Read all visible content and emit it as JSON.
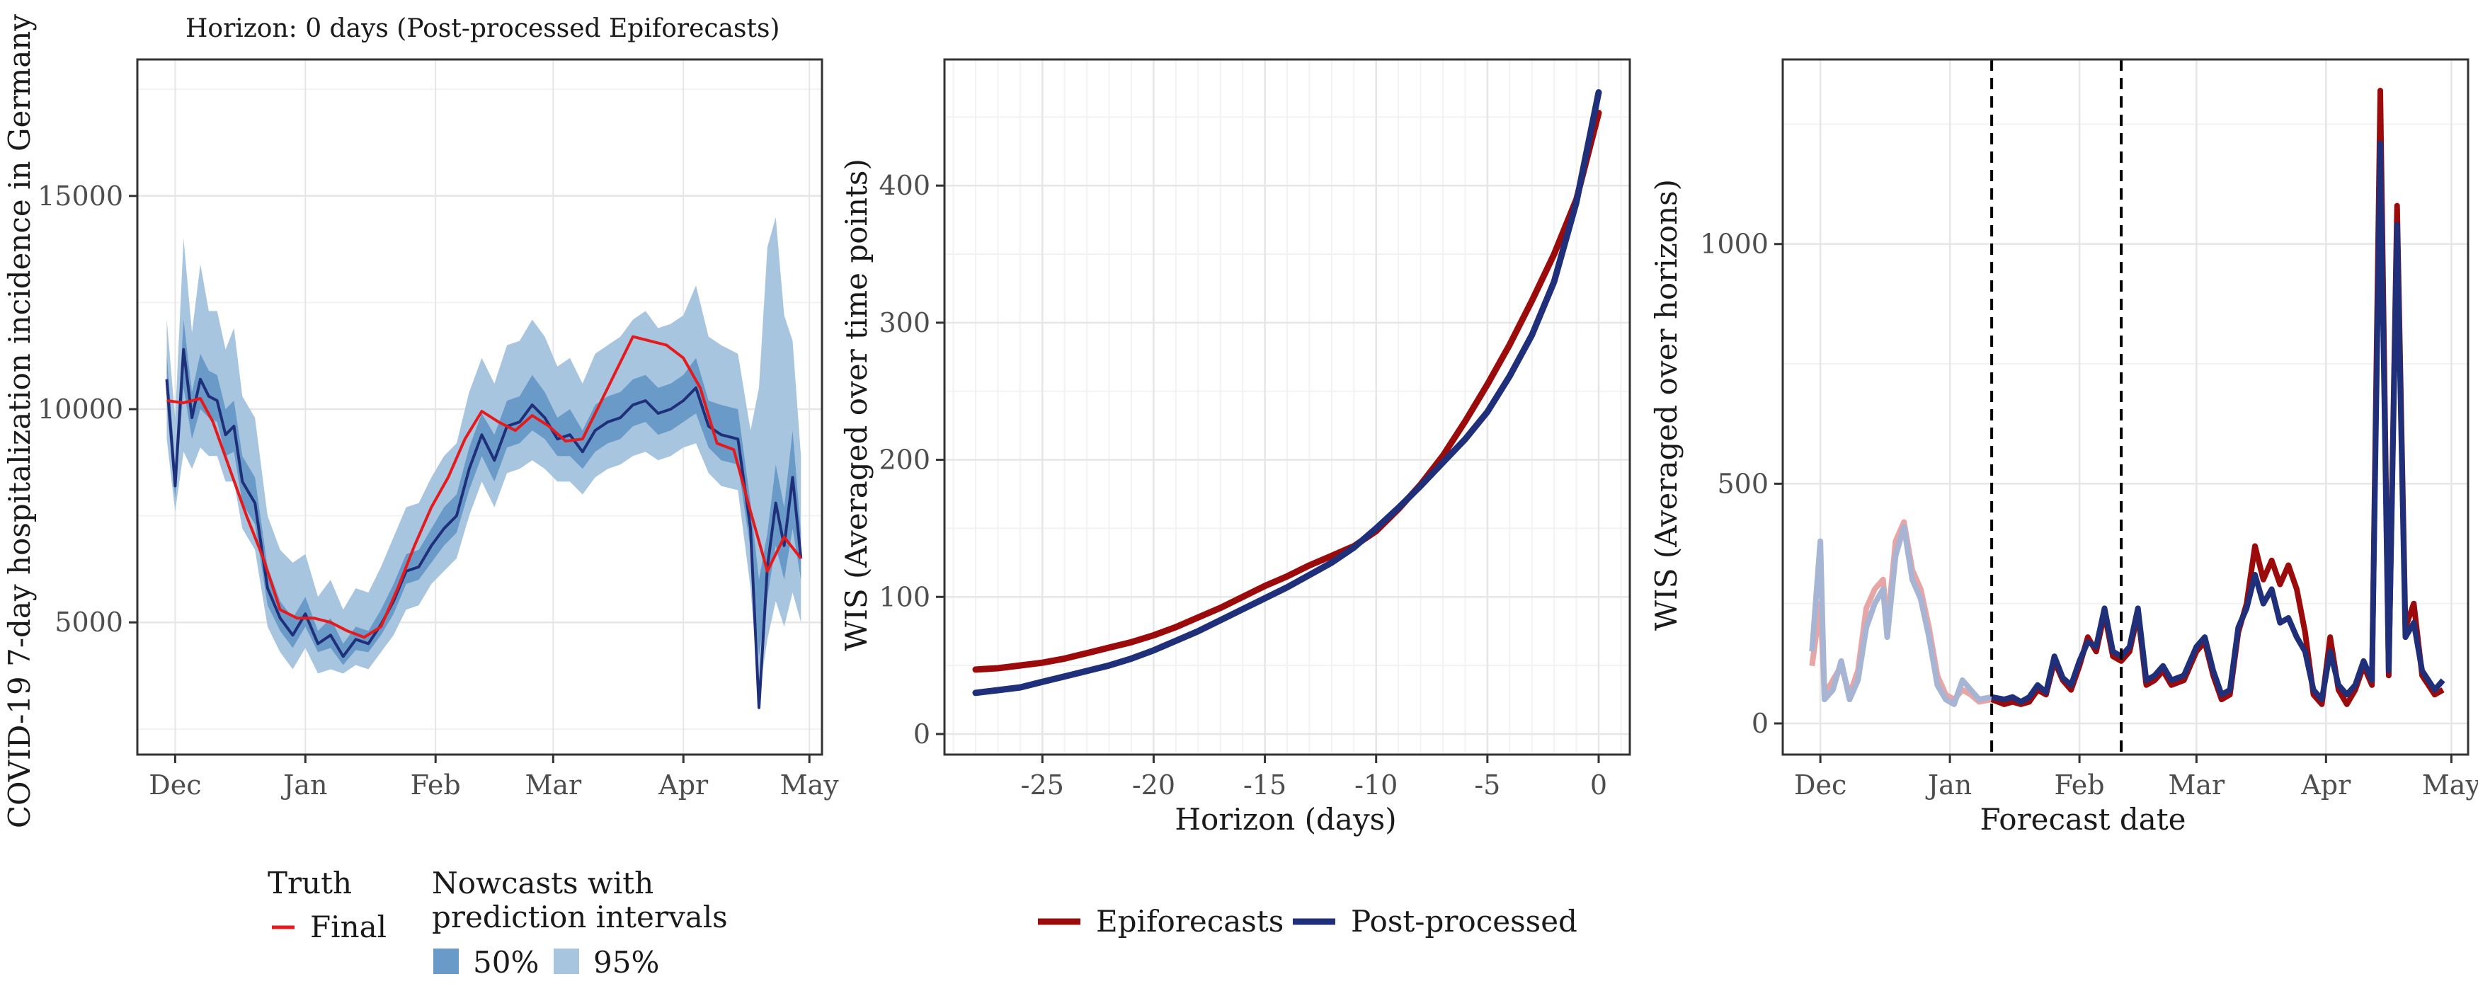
{
  "colors": {
    "truth": "#e41a1c",
    "nowcast_median": "#1f2f7a",
    "band50": "#6a9bc8",
    "band95": "#a8c5e0",
    "epiforecasts": "#9b0b0b",
    "postprocessed": "#1f2f7a",
    "faded_epiforecasts": "#e8a5a5",
    "faded_postprocessed": "#a7b5d4",
    "grid_major": "#e6e6e6",
    "grid_minor": "#f2f2f2",
    "vline": "#000000"
  },
  "legend_left": {
    "truth_title": "Truth",
    "truth_item": "Final",
    "nowcast_title_line1": "Nowcasts with",
    "nowcast_title_line2": "prediction intervals",
    "band50_label": "50%",
    "band95_label": "95%"
  },
  "legend_middle": {
    "epiforecasts_label": "Epiforecasts",
    "postprocessed_label": "Post-processed"
  },
  "chart_data": [
    {
      "type": "line",
      "title": "Horizon: 0 days (Post-processed Epiforecasts)",
      "xlabel": "",
      "ylabel": "COVID-19 7-day hospitalization incidence in Germany",
      "x_ticks": [
        "Dec",
        "Jan",
        "Feb",
        "Mar",
        "Apr",
        "May"
      ],
      "x_tick_dates": [
        "2021-12-01",
        "2022-01-01",
        "2022-02-01",
        "2022-03-01",
        "2022-04-01",
        "2022-05-01"
      ],
      "xlim": [
        "2021-11-22",
        "2022-05-04"
      ],
      "ylim": [
        1900,
        18200
      ],
      "y_ticks": [
        5000,
        10000,
        15000
      ],
      "grid": true,
      "truth": {
        "name": "Final",
        "x": [
          "2021-11-29",
          "2021-12-03",
          "2021-12-07",
          "2021-12-10",
          "2021-12-14",
          "2021-12-18",
          "2021-12-22",
          "2021-12-26",
          "2021-12-30",
          "2022-01-03",
          "2022-01-07",
          "2022-01-11",
          "2022-01-15",
          "2022-01-19",
          "2022-01-23",
          "2022-01-27",
          "2022-01-31",
          "2022-02-04",
          "2022-02-08",
          "2022-02-12",
          "2022-02-16",
          "2022-02-20",
          "2022-02-24",
          "2022-02-28",
          "2022-03-04",
          "2022-03-08",
          "2022-03-12",
          "2022-03-16",
          "2022-03-20",
          "2022-03-24",
          "2022-03-28",
          "2022-04-01",
          "2022-04-05",
          "2022-04-09",
          "2022-04-13",
          "2022-04-17",
          "2022-04-21",
          "2022-04-25",
          "2022-04-29"
        ],
        "y": [
          10200,
          10150,
          10250,
          9700,
          8600,
          7500,
          6500,
          5300,
          5100,
          5100,
          5000,
          4800,
          4650,
          4900,
          5800,
          6800,
          7700,
          8400,
          9300,
          9950,
          9700,
          9500,
          9850,
          9600,
          9250,
          9300,
          10100,
          10900,
          11700,
          11600,
          11500,
          11200,
          10500,
          9200,
          9050,
          7600,
          6200,
          7000,
          6500
        ]
      },
      "nowcast": {
        "name": "Nowcasts with prediction intervals",
        "x": [
          "2021-11-29",
          "2021-12-01",
          "2021-12-03",
          "2021-12-05",
          "2021-12-07",
          "2021-12-09",
          "2021-12-11",
          "2021-12-13",
          "2021-12-15",
          "2021-12-17",
          "2021-12-20",
          "2021-12-23",
          "2021-12-26",
          "2021-12-29",
          "2022-01-01",
          "2022-01-04",
          "2022-01-07",
          "2022-01-10",
          "2022-01-13",
          "2022-01-16",
          "2022-01-19",
          "2022-01-22",
          "2022-01-25",
          "2022-01-28",
          "2022-01-31",
          "2022-02-03",
          "2022-02-06",
          "2022-02-09",
          "2022-02-12",
          "2022-02-15",
          "2022-02-18",
          "2022-02-21",
          "2022-02-24",
          "2022-02-27",
          "2022-03-02",
          "2022-03-05",
          "2022-03-08",
          "2022-03-11",
          "2022-03-14",
          "2022-03-17",
          "2022-03-20",
          "2022-03-23",
          "2022-03-26",
          "2022-03-29",
          "2022-04-01",
          "2022-04-04",
          "2022-04-07",
          "2022-04-10",
          "2022-04-14",
          "2022-04-17",
          "2022-04-19",
          "2022-04-21",
          "2022-04-23",
          "2022-04-25",
          "2022-04-27",
          "2022-04-29"
        ],
        "median": [
          10700,
          8200,
          11400,
          9800,
          10700,
          10300,
          10200,
          9400,
          9600,
          8300,
          7800,
          5800,
          5100,
          4700,
          5200,
          4500,
          4700,
          4200,
          4600,
          4500,
          4950,
          5500,
          6200,
          6300,
          6800,
          7200,
          7500,
          8600,
          9400,
          8800,
          9600,
          9700,
          10100,
          9800,
          9300,
          9400,
          9000,
          9500,
          9700,
          9800,
          10100,
          10200,
          9900,
          10000,
          10200,
          10500,
          9600,
          9400,
          9300,
          7200,
          3000,
          6300,
          7800,
          6800,
          8400,
          6500
        ],
        "lower50": [
          10100,
          7900,
          10500,
          9300,
          10000,
          9800,
          9700,
          8900,
          9000,
          7800,
          7300,
          5400,
          4800,
          4400,
          4900,
          4300,
          4400,
          4000,
          4350,
          4300,
          4700,
          5200,
          5900,
          6000,
          6400,
          6800,
          7100,
          8100,
          8900,
          8300,
          9100,
          9200,
          9500,
          9300,
          8900,
          8900,
          8600,
          9000,
          9200,
          9300,
          9600,
          9700,
          9400,
          9500,
          9700,
          9900,
          9100,
          8800,
          8700,
          6700,
          4200,
          5600,
          6800,
          6000,
          7200,
          6000
        ],
        "upper50": [
          11300,
          8700,
          12100,
          10400,
          11300,
          10900,
          10800,
          10000,
          10200,
          8900,
          8400,
          6300,
          5500,
          5100,
          5600,
          4800,
          5100,
          4500,
          4900,
          4800,
          5300,
          5900,
          6600,
          6700,
          7200,
          7700,
          8000,
          9100,
          9900,
          9400,
          10200,
          10300,
          10800,
          10400,
          9800,
          10000,
          9500,
          10100,
          10300,
          10400,
          10700,
          10800,
          10500,
          10600,
          10800,
          11200,
          10200,
          10100,
          10000,
          7800,
          6000,
          7100,
          8700,
          7700,
          9500,
          7100
        ],
        "lower95": [
          9300,
          7600,
          9000,
          8600,
          9100,
          8900,
          8900,
          8300,
          8300,
          7200,
          6700,
          4900,
          4300,
          3900,
          4400,
          3800,
          3900,
          3800,
          4000,
          3900,
          4300,
          4700,
          5300,
          5400,
          5900,
          6200,
          6500,
          7500,
          8300,
          7700,
          8500,
          8600,
          8800,
          8600,
          8300,
          8300,
          8000,
          8400,
          8600,
          8700,
          8900,
          9000,
          8800,
          8900,
          9100,
          9200,
          8500,
          8200,
          8100,
          5800,
          3300,
          4600,
          5500,
          4900,
          5700,
          5000
        ],
        "upper95": [
          12100,
          9800,
          14000,
          11800,
          13400,
          12300,
          12300,
          11400,
          11900,
          10300,
          9800,
          7500,
          6700,
          6400,
          6600,
          5600,
          6000,
          5300,
          5800,
          5700,
          6300,
          7000,
          7700,
          7800,
          8400,
          8900,
          9200,
          10400,
          11200,
          10600,
          11500,
          11600,
          12100,
          11700,
          11000,
          11200,
          10600,
          11300,
          11500,
          11700,
          12100,
          12300,
          11900,
          12000,
          12200,
          12900,
          11700,
          11500,
          11300,
          9500,
          10500,
          13800,
          14500,
          12200,
          11600,
          8900
        ]
      }
    },
    {
      "type": "line",
      "title": "",
      "xlabel": "Horizon (days)",
      "ylabel": "WIS (Averaged over time points)",
      "x_ticks": [
        -25,
        -20,
        -15,
        -10,
        -5,
        0
      ],
      "xlim": [
        -29.4,
        1.4
      ],
      "ylim": [
        -15,
        492
      ],
      "y_ticks": [
        0,
        100,
        200,
        300,
        400
      ],
      "grid": true,
      "x": [
        -28,
        -27,
        -26,
        -25,
        -24,
        -23,
        -22,
        -21,
        -20,
        -19,
        -18,
        -17,
        -16,
        -15,
        -14,
        -13,
        -12,
        -11,
        -10,
        -9,
        -8,
        -7,
        -6,
        -5,
        -4,
        -3,
        -2,
        -1,
        0
      ],
      "series": [
        {
          "name": "Epiforecasts",
          "values": [
            47,
            48,
            50,
            52,
            55,
            59,
            63,
            67,
            72,
            78,
            85,
            92,
            100,
            108,
            115,
            123,
            130,
            137,
            148,
            164,
            182,
            203,
            228,
            255,
            284,
            316,
            350,
            390,
            453
          ]
        },
        {
          "name": "Post-processed",
          "values": [
            30,
            32,
            34,
            38,
            42,
            46,
            50,
            55,
            61,
            68,
            75,
            83,
            91,
            99,
            107,
            116,
            125,
            136,
            150,
            165,
            181,
            198,
            215,
            235,
            261,
            291,
            330,
            388,
            468
          ]
        }
      ]
    },
    {
      "type": "line",
      "title": "",
      "xlabel": "Forecast date",
      "ylabel": "WIS (Averaged over horizons)",
      "x_ticks": [
        "Dec",
        "Jan",
        "Feb",
        "Mar",
        "Apr",
        "May"
      ],
      "x_tick_dates": [
        "2021-12-01",
        "2022-01-01",
        "2022-02-01",
        "2022-03-01",
        "2022-04-01",
        "2022-05-01"
      ],
      "xlim": [
        "2021-11-22",
        "2022-05-05"
      ],
      "ylim": [
        -65,
        1385
      ],
      "y_ticks": [
        0,
        500,
        1000
      ],
      "grid": true,
      "vlines": [
        "2022-01-11",
        "2022-02-11"
      ],
      "x": [
        "2021-11-29",
        "2021-12-01",
        "2021-12-02",
        "2021-12-04",
        "2021-12-06",
        "2021-12-08",
        "2021-12-10",
        "2021-12-12",
        "2021-12-14",
        "2021-12-16",
        "2021-12-17",
        "2021-12-19",
        "2021-12-21",
        "2021-12-23",
        "2021-12-25",
        "2021-12-27",
        "2021-12-29",
        "2021-12-31",
        "2022-01-02",
        "2022-01-04",
        "2022-01-06",
        "2022-01-08",
        "2022-01-11",
        "2022-01-14",
        "2022-01-16",
        "2022-01-18",
        "2022-01-20",
        "2022-01-22",
        "2022-01-24",
        "2022-01-26",
        "2022-01-28",
        "2022-01-30",
        "2022-02-01",
        "2022-02-03",
        "2022-02-05",
        "2022-02-07",
        "2022-02-09",
        "2022-02-11",
        "2022-02-13",
        "2022-02-15",
        "2022-02-17",
        "2022-02-19",
        "2022-02-21",
        "2022-02-23",
        "2022-02-26",
        "2022-03-01",
        "2022-03-03",
        "2022-03-05",
        "2022-03-07",
        "2022-03-09",
        "2022-03-11",
        "2022-03-13",
        "2022-03-15",
        "2022-03-17",
        "2022-03-19",
        "2022-03-21",
        "2022-03-23",
        "2022-03-25",
        "2022-03-27",
        "2022-03-29",
        "2022-03-31",
        "2022-04-02",
        "2022-04-04",
        "2022-04-06",
        "2022-04-08",
        "2022-04-10",
        "2022-04-12",
        "2022-04-14",
        "2022-04-16",
        "2022-04-18",
        "2022-04-20",
        "2022-04-22",
        "2022-04-24",
        "2022-04-27",
        "2022-04-29"
      ],
      "series": [
        {
          "name": "Epiforecasts",
          "values": [
            120,
            250,
            60,
            90,
            120,
            60,
            110,
            240,
            280,
            300,
            200,
            380,
            420,
            320,
            280,
            200,
            100,
            60,
            50,
            70,
            60,
            45,
            50,
            40,
            45,
            40,
            45,
            70,
            60,
            130,
            90,
            70,
            120,
            180,
            150,
            230,
            140,
            130,
            150,
            230,
            80,
            90,
            110,
            80,
            90,
            150,
            170,
            100,
            50,
            60,
            190,
            250,
            370,
            300,
            340,
            290,
            330,
            280,
            190,
            60,
            40,
            180,
            70,
            40,
            70,
            120,
            80,
            1320,
            100,
            1080,
            200,
            250,
            100,
            60,
            70
          ]
        },
        {
          "name": "Post-processed",
          "values": [
            150,
            380,
            50,
            70,
            130,
            50,
            90,
            200,
            250,
            280,
            180,
            350,
            410,
            300,
            260,
            180,
            80,
            50,
            40,
            90,
            70,
            50,
            55,
            50,
            55,
            45,
            55,
            80,
            65,
            140,
            95,
            80,
            130,
            170,
            160,
            240,
            150,
            140,
            160,
            240,
            90,
            100,
            120,
            90,
            100,
            160,
            180,
            110,
            60,
            70,
            200,
            240,
            310,
            250,
            280,
            210,
            220,
            180,
            150,
            70,
            50,
            150,
            80,
            60,
            80,
            130,
            90,
            1210,
            110,
            1040,
            180,
            210,
            110,
            70,
            90
          ]
        }
      ]
    }
  ]
}
